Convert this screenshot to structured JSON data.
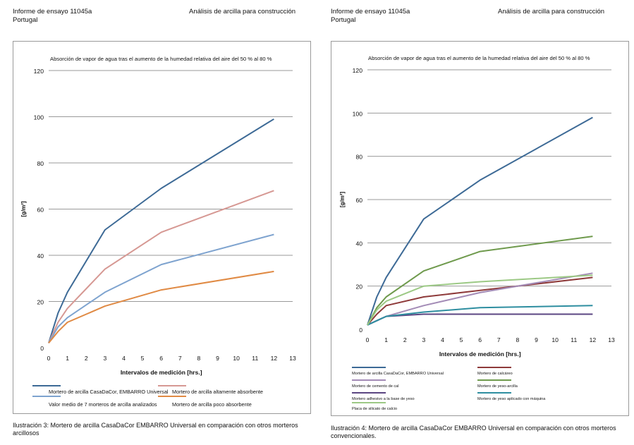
{
  "header": {
    "report_left": "Informe de ensayo 11045a",
    "country_left": "Portugal",
    "subject_left": "Análisis de arcilla para construcción",
    "report_right": "Informe de ensayo 11045a",
    "country_right": "Portugal",
    "subject_right": "Análisis de arcilla para construcción"
  },
  "captions": {
    "left": "Ilustración 3: Mortero de arcilla CasaDaCor EMBARRO Universal en comparación con otros morteros arcillosos",
    "right": "Ilustración 4: Mortero de arcilla CasaDaCor EMBARRO Universal en comparación con otros morteros convencionales."
  },
  "chart_data": [
    {
      "type": "line",
      "title": "Absorción de vapor de agua tras el aumento de la humedad relativa del aire del 50 % al 80 %",
      "xlabel": "Intervalos de medición [hrs.]",
      "ylabel": "[g/m²]",
      "xlim": [
        0,
        13
      ],
      "ylim": [
        0,
        120
      ],
      "xticks": [
        0,
        1,
        2,
        3,
        4,
        5,
        6,
        7,
        8,
        9,
        10,
        11,
        12,
        13
      ],
      "yticks": [
        0,
        20,
        40,
        60,
        80,
        100,
        120
      ],
      "grid": "horizontal",
      "x": [
        0,
        0.5,
        1,
        3,
        6,
        12
      ],
      "series": [
        {
          "name": "Mortero de arcilla CasaDaCor, EMBARRO Universal",
          "color": "#3d6a96",
          "values": [
            2,
            15,
            24,
            51,
            69,
            99
          ]
        },
        {
          "name": "Mortero de arcilla altamente absorbente",
          "color": "#d69893",
          "values": [
            2,
            11,
            17,
            34,
            50,
            68
          ]
        },
        {
          "name": "Valor medio de 7 morteros de arcilla analizados",
          "color": "#7ea3cf",
          "values": [
            2,
            9,
            13,
            24,
            36,
            49
          ]
        },
        {
          "name": "Mortero de arcilla poco absorbente",
          "color": "#e08a44",
          "values": [
            2,
            7,
            11,
            18,
            25,
            33
          ]
        }
      ]
    },
    {
      "type": "line",
      "title": "Absorción de vapor de agua tras el aumento de la humedad relativa del aire del 50 % al 80 %",
      "xlabel": "Intervalos de medición [hrs.]",
      "ylabel": "[g/m²]",
      "xlim": [
        0,
        13
      ],
      "ylim": [
        0,
        120
      ],
      "xticks": [
        0,
        1,
        2,
        3,
        4,
        5,
        6,
        7,
        8,
        9,
        10,
        11,
        12,
        13
      ],
      "yticks": [
        0,
        20,
        40,
        60,
        80,
        100,
        120
      ],
      "grid": "horizontal",
      "x": [
        0,
        0.5,
        1,
        3,
        6,
        12
      ],
      "series": [
        {
          "name": "Mortero de arcilla CasaDaCor, EMBARRO Universal",
          "color": "#3d6a96",
          "values": [
            2,
            15,
            24,
            51,
            69,
            98
          ]
        },
        {
          "name": "Mortero de calcáreo",
          "color": "#8e3a3a",
          "values": [
            2,
            7,
            11,
            15,
            18,
            24
          ]
        },
        {
          "name": "Mortero de cemento de cal",
          "color": "#a38bb6",
          "values": [
            2,
            4,
            6,
            11,
            17,
            26
          ]
        },
        {
          "name": "Mortero de yeso-arcilla",
          "color": "#6f9a4d",
          "values": [
            2,
            10,
            15,
            27,
            36,
            43
          ]
        },
        {
          "name": "Mortero adhesivo a la base de yeso",
          "color": "#5b4682",
          "values": [
            2,
            4,
            6,
            7,
            7,
            7
          ]
        },
        {
          "name": "Mortero de yeso aplicado con máquina",
          "color": "#2e8ea0",
          "values": [
            2,
            4,
            6,
            8,
            10,
            11
          ]
        },
        {
          "name": "Placa de silicato de calcio",
          "color": "#9cc985",
          "values": [
            2,
            9,
            13,
            20,
            22,
            25
          ]
        }
      ]
    }
  ]
}
